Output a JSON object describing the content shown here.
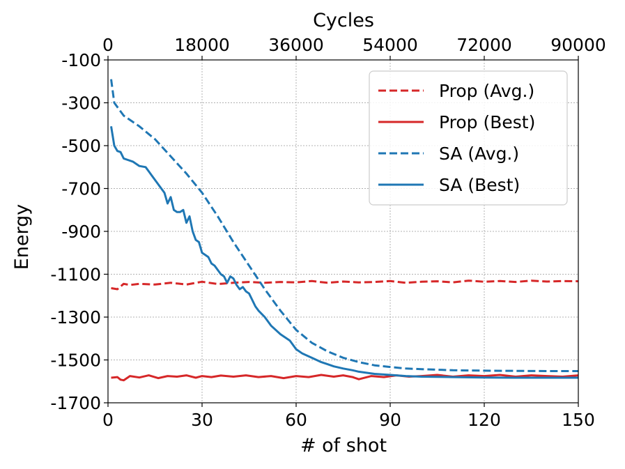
{
  "chart_data": {
    "type": "line",
    "title": "",
    "xlabel": "# of shot",
    "ylabel": "Energy",
    "x2label": "Cycles",
    "xlim": [
      0,
      150
    ],
    "ylim": [
      -1700,
      -100
    ],
    "x2lim": [
      0,
      90000
    ],
    "grid": true,
    "legend_position": "top-right",
    "xticks": [
      0,
      30,
      60,
      90,
      120,
      150
    ],
    "xtick_labels": [
      "0",
      "30",
      "60",
      "90",
      "120",
      "150"
    ],
    "x2ticks": [
      0,
      18000,
      36000,
      54000,
      72000,
      90000
    ],
    "x2tick_labels": [
      "0",
      "18000",
      "36000",
      "54000",
      "72000",
      "90000"
    ],
    "yticks": [
      -100,
      -300,
      -500,
      -700,
      -900,
      -1100,
      -1300,
      -1500,
      -1700
    ],
    "ytick_labels": [
      "-100",
      "-300",
      "-500",
      "-700",
      "-900",
      "-1100",
      "-1300",
      "-1500",
      "-1700"
    ],
    "series": [
      {
        "name": "Prop (Avg.)",
        "color": "#d62728",
        "style": "dashed",
        "x": [
          1,
          3,
          5,
          7,
          10,
          15,
          20,
          25,
          30,
          35,
          40,
          45,
          50,
          55,
          60,
          65,
          70,
          75,
          80,
          85,
          90,
          95,
          100,
          105,
          110,
          115,
          120,
          125,
          130,
          135,
          140,
          145,
          150
        ],
        "y": [
          -1165,
          -1170,
          -1145,
          -1150,
          -1145,
          -1148,
          -1140,
          -1148,
          -1135,
          -1146,
          -1140,
          -1136,
          -1140,
          -1136,
          -1138,
          -1132,
          -1140,
          -1134,
          -1138,
          -1136,
          -1132,
          -1140,
          -1135,
          -1133,
          -1138,
          -1130,
          -1135,
          -1132,
          -1136,
          -1130,
          -1134,
          -1132,
          -1133
        ]
      },
      {
        "name": "Prop (Best)",
        "color": "#d62728",
        "style": "solid",
        "x": [
          1,
          3,
          4,
          5,
          7,
          10,
          13,
          16,
          19,
          22,
          25,
          28,
          30,
          33,
          36,
          40,
          44,
          48,
          52,
          56,
          60,
          64,
          68,
          72,
          75,
          78,
          80,
          84,
          88,
          92,
          96,
          100,
          105,
          110,
          115,
          120,
          125,
          130,
          135,
          140,
          145,
          150
        ],
        "y": [
          -1583,
          -1580,
          -1592,
          -1595,
          -1575,
          -1582,
          -1572,
          -1585,
          -1575,
          -1578,
          -1572,
          -1583,
          -1575,
          -1580,
          -1573,
          -1578,
          -1572,
          -1580,
          -1575,
          -1585,
          -1575,
          -1580,
          -1570,
          -1578,
          -1572,
          -1580,
          -1590,
          -1575,
          -1580,
          -1572,
          -1578,
          -1575,
          -1570,
          -1578,
          -1572,
          -1575,
          -1570,
          -1578,
          -1572,
          -1575,
          -1578,
          -1572
        ]
      },
      {
        "name": "SA (Avg.)",
        "color": "#1f77b4",
        "style": "dashed",
        "x": [
          1,
          2,
          5,
          10,
          15,
          20,
          25,
          30,
          35,
          40,
          45,
          50,
          55,
          60,
          65,
          70,
          75,
          80,
          85,
          90,
          95,
          100,
          110,
          120,
          130,
          140,
          150
        ],
        "y": [
          -190,
          -300,
          -360,
          -410,
          -470,
          -550,
          -630,
          -720,
          -830,
          -950,
          -1060,
          -1170,
          -1270,
          -1360,
          -1420,
          -1460,
          -1490,
          -1510,
          -1525,
          -1533,
          -1540,
          -1543,
          -1548,
          -1550,
          -1551,
          -1552,
          -1552
        ]
      },
      {
        "name": "SA (Best)",
        "color": "#1f77b4",
        "style": "solid",
        "x": [
          1,
          2,
          3,
          4,
          5,
          6,
          8,
          10,
          12,
          13,
          14,
          16,
          18,
          19,
          20,
          21,
          22,
          23,
          24,
          25,
          26,
          27,
          28,
          29,
          30,
          31,
          32,
          33,
          34,
          35,
          36,
          37,
          38,
          39,
          40,
          41,
          42,
          43,
          44,
          45,
          46,
          47,
          48,
          50,
          52,
          55,
          58,
          60,
          62,
          65,
          68,
          70,
          72,
          75,
          78,
          80,
          85,
          90,
          95,
          100,
          110,
          120,
          130,
          140,
          150
        ],
        "y": [
          -410,
          -500,
          -525,
          -530,
          -560,
          -565,
          -575,
          -595,
          -600,
          -620,
          -640,
          -680,
          -720,
          -770,
          -740,
          -800,
          -810,
          -810,
          -800,
          -860,
          -830,
          -900,
          -940,
          -950,
          -1000,
          -1010,
          -1020,
          -1050,
          -1060,
          -1080,
          -1100,
          -1110,
          -1140,
          -1110,
          -1120,
          -1150,
          -1170,
          -1160,
          -1180,
          -1190,
          -1220,
          -1250,
          -1270,
          -1300,
          -1340,
          -1380,
          -1410,
          -1450,
          -1470,
          -1490,
          -1510,
          -1520,
          -1530,
          -1540,
          -1548,
          -1555,
          -1565,
          -1570,
          -1575,
          -1578,
          -1580,
          -1582,
          -1583,
          -1583,
          -1583
        ]
      }
    ]
  }
}
